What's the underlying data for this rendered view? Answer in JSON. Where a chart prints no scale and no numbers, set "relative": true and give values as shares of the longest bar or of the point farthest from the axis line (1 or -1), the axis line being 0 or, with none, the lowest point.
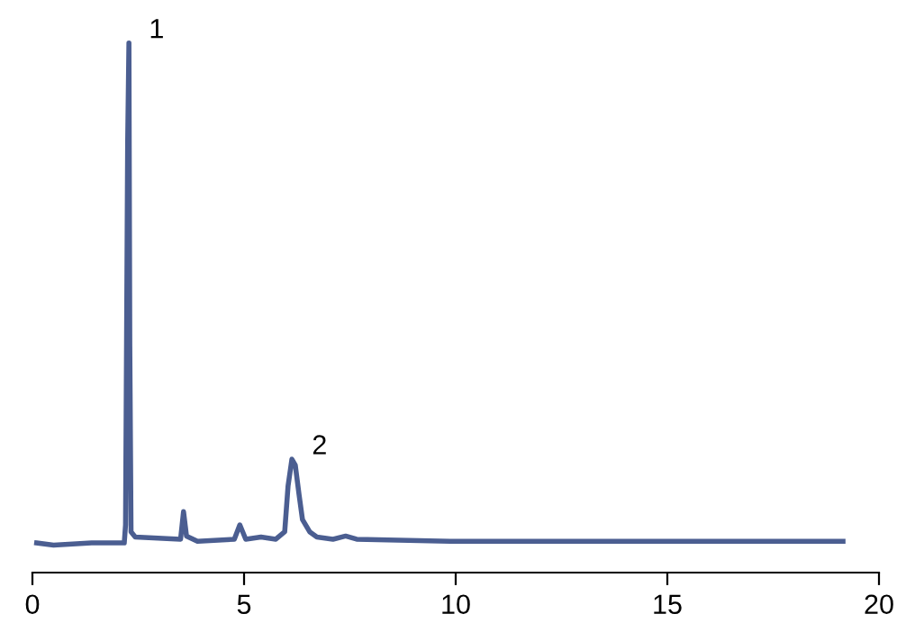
{
  "chart_data": {
    "type": "line",
    "relative": true,
    "tick_labels": "x",
    "grid": false,
    "legend": false,
    "marker": "none",
    "line_style": "solid",
    "xlim": [
      0,
      20
    ],
    "xticks": [
      0,
      5,
      10,
      15,
      20
    ],
    "annotations": [
      {
        "text": "1",
        "x": 2.28,
        "y": 1.0
      },
      {
        "text": "2",
        "x": 6.13,
        "y": 0.214
      }
    ],
    "series": [
      {
        "color": "#4b5e91",
        "x": [
          0.1,
          0.5,
          1.4,
          2.17,
          2.2,
          2.25,
          2.28,
          2.3,
          2.33,
          2.43,
          3.5,
          3.57,
          3.64,
          3.9,
          4.77,
          4.9,
          5.04,
          5.4,
          5.75,
          5.96,
          6.04,
          6.13,
          6.21,
          6.3,
          6.38,
          6.55,
          6.72,
          7.1,
          7.4,
          7.66,
          9.87,
          19.15
        ],
        "values": [
          0.056,
          0.052,
          0.056,
          0.056,
          0.09,
          0.81,
          1.0,
          0.432,
          0.077,
          0.067,
          0.063,
          0.115,
          0.069,
          0.059,
          0.063,
          0.09,
          0.063,
          0.067,
          0.063,
          0.077,
          0.164,
          0.214,
          0.203,
          0.147,
          0.1,
          0.077,
          0.067,
          0.063,
          0.069,
          0.063,
          0.059,
          0.059
        ]
      }
    ]
  }
}
